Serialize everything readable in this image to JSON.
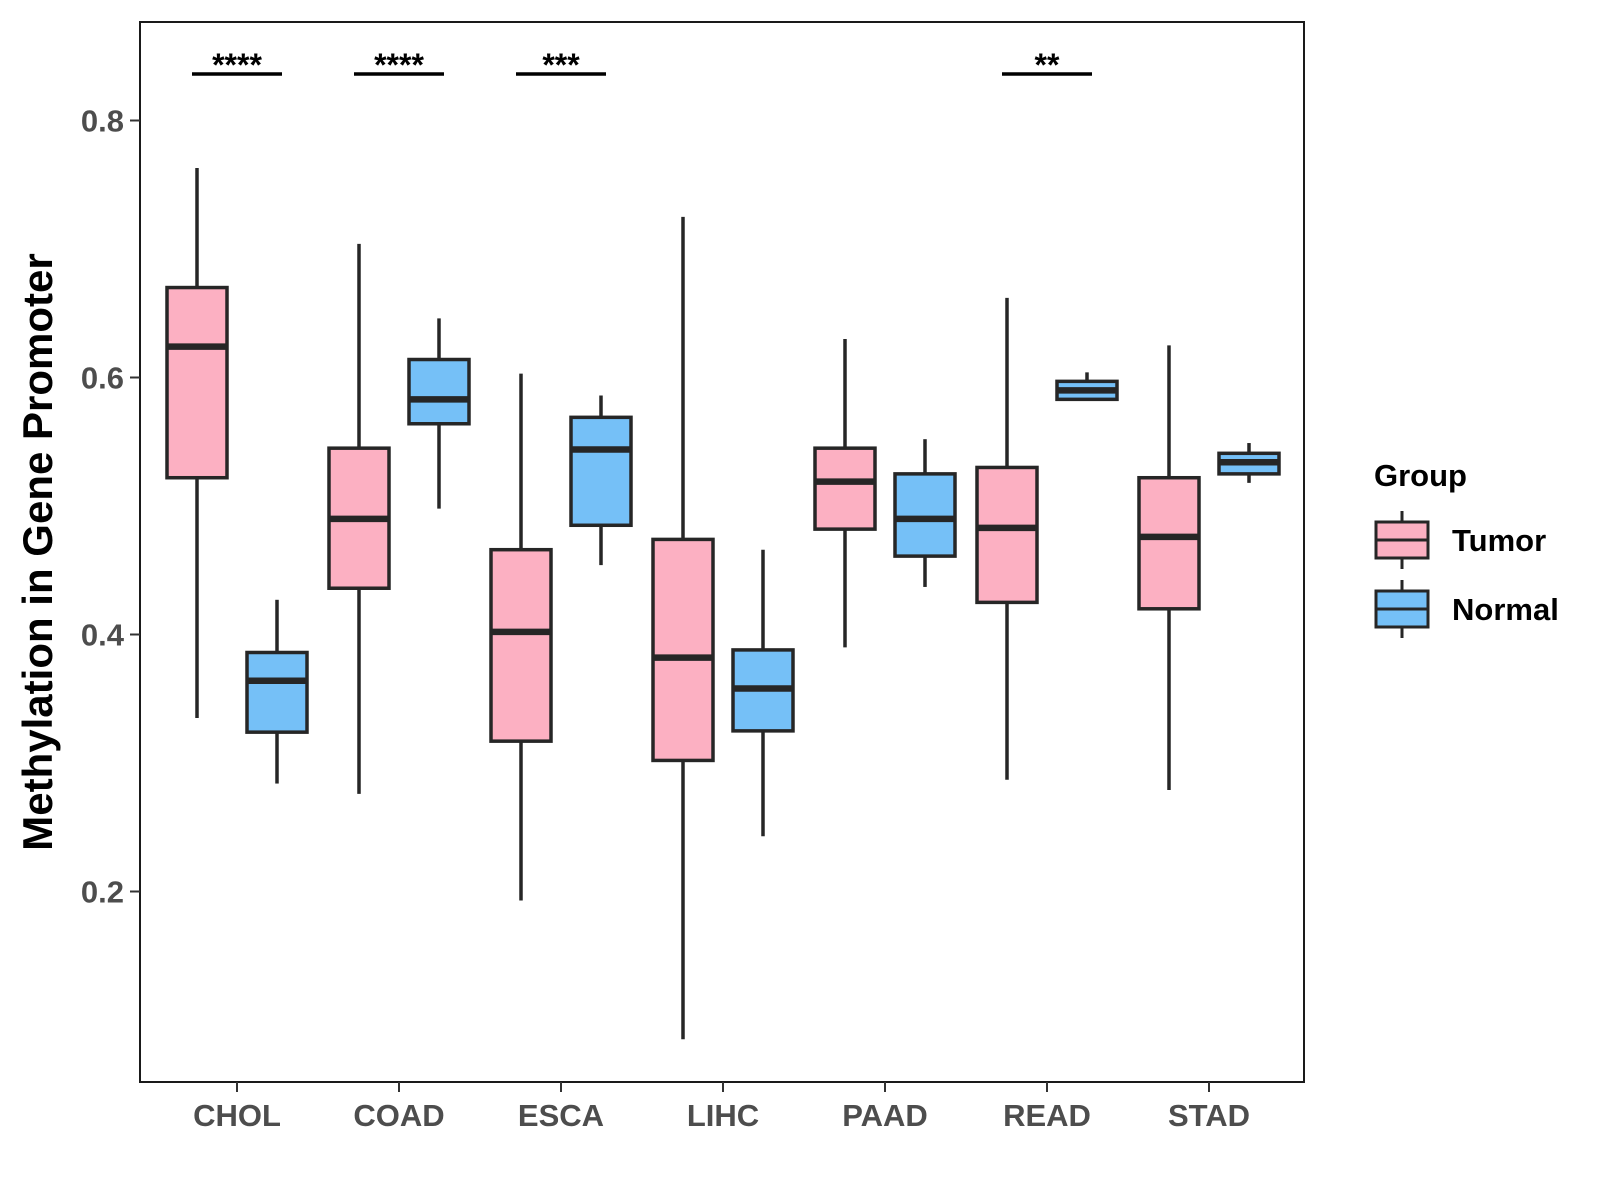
{
  "chart_data": {
    "type": "boxplot",
    "title": "",
    "xlabel": "",
    "ylabel": "Methylation in Gene Promoter",
    "ylim": [
      0.05,
      0.875
    ],
    "yticks": [
      "0.2",
      "0.4",
      "0.6",
      "0.8"
    ],
    "ytick_values": [
      0.2,
      0.4,
      0.6,
      0.8
    ],
    "categories": [
      "CHOL",
      "COAD",
      "ESCA",
      "LIHC",
      "PAAD",
      "READ",
      "STAD"
    ],
    "legend": {
      "title": "Group",
      "position": "right",
      "entries": [
        {
          "name": "Tumor",
          "color": "#FCB0C2"
        },
        {
          "name": "Normal",
          "color": "#75C0F7"
        }
      ]
    },
    "series": [
      {
        "name": "Tumor",
        "color": "#FCB0C2",
        "boxes": [
          {
            "category": "CHOL",
            "whisker_low": 0.335,
            "q1": 0.522,
            "median": 0.624,
            "q3": 0.67,
            "whisker_high": 0.763
          },
          {
            "category": "COAD",
            "whisker_low": 0.276,
            "q1": 0.436,
            "median": 0.49,
            "q3": 0.545,
            "whisker_high": 0.704
          },
          {
            "category": "ESCA",
            "whisker_low": 0.193,
            "q1": 0.317,
            "median": 0.402,
            "q3": 0.466,
            "whisker_high": 0.603
          },
          {
            "category": "LIHC",
            "whisker_low": 0.085,
            "q1": 0.302,
            "median": 0.382,
            "q3": 0.474,
            "whisker_high": 0.725
          },
          {
            "category": "PAAD",
            "whisker_low": 0.39,
            "q1": 0.482,
            "median": 0.519,
            "q3": 0.545,
            "whisker_high": 0.63
          },
          {
            "category": "READ",
            "whisker_low": 0.287,
            "q1": 0.425,
            "median": 0.483,
            "q3": 0.53,
            "whisker_high": 0.662
          },
          {
            "category": "STAD",
            "whisker_low": 0.279,
            "q1": 0.42,
            "median": 0.476,
            "q3": 0.522,
            "whisker_high": 0.625
          }
        ]
      },
      {
        "name": "Normal",
        "color": "#75C0F7",
        "boxes": [
          {
            "category": "CHOL",
            "whisker_low": 0.284,
            "q1": 0.324,
            "median": 0.364,
            "q3": 0.386,
            "whisker_high": 0.427
          },
          {
            "category": "COAD",
            "whisker_low": 0.498,
            "q1": 0.564,
            "median": 0.583,
            "q3": 0.614,
            "whisker_high": 0.646
          },
          {
            "category": "ESCA",
            "whisker_low": 0.454,
            "q1": 0.485,
            "median": 0.544,
            "q3": 0.569,
            "whisker_high": 0.586
          },
          {
            "category": "LIHC",
            "whisker_low": 0.243,
            "q1": 0.325,
            "median": 0.358,
            "q3": 0.388,
            "whisker_high": 0.466
          },
          {
            "category": "PAAD",
            "whisker_low": 0.437,
            "q1": 0.461,
            "median": 0.49,
            "q3": 0.525,
            "whisker_high": 0.552
          },
          {
            "category": "READ",
            "whisker_low": 0.583,
            "q1": 0.583,
            "median": 0.59,
            "q3": 0.597,
            "whisker_high": 0.604
          },
          {
            "category": "STAD",
            "whisker_low": 0.518,
            "q1": 0.525,
            "median": 0.534,
            "q3": 0.541,
            "whisker_high": 0.549
          }
        ]
      }
    ],
    "significance": [
      {
        "category": "CHOL",
        "label": "****"
      },
      {
        "category": "COAD",
        "label": "****"
      },
      {
        "category": "ESCA",
        "label": "***"
      },
      {
        "category": "READ",
        "label": "**"
      }
    ]
  }
}
